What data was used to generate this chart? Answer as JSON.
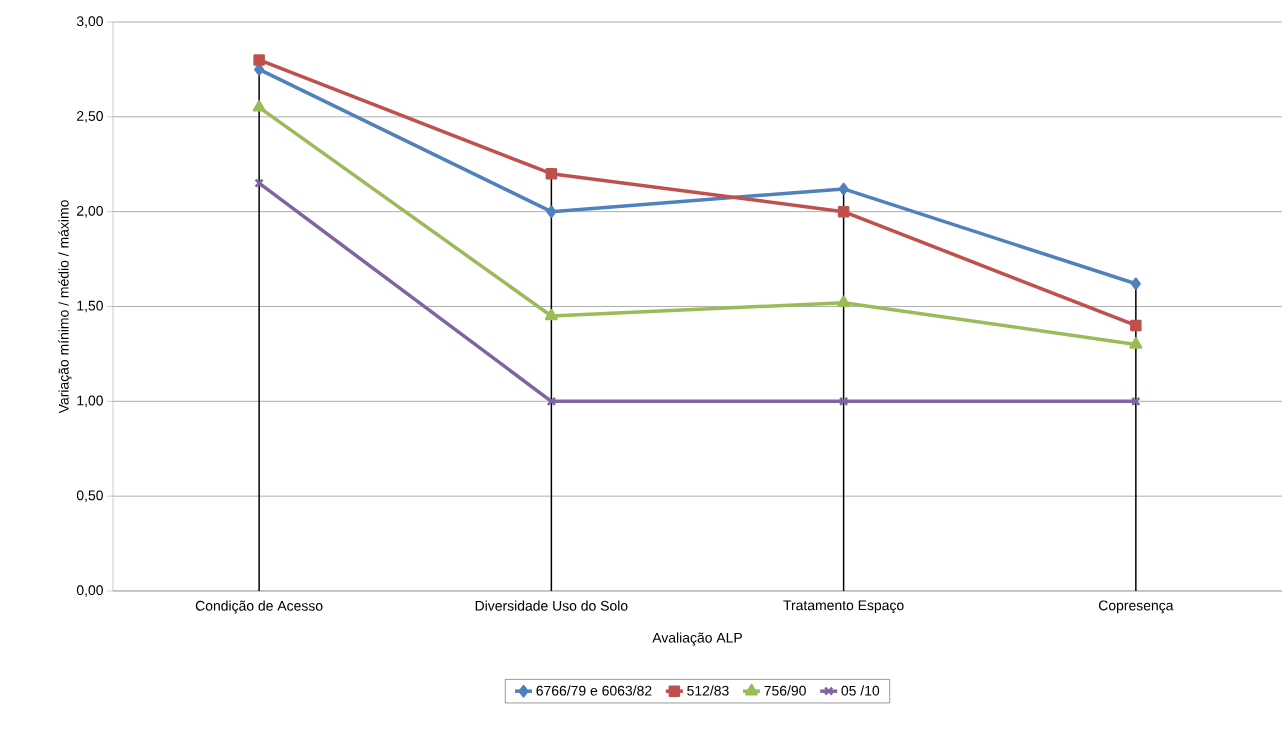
{
  "chart_data": {
    "type": "line",
    "xlabel": "Avaliação ALP",
    "ylabel": "Variação mínimo / médio / máximo",
    "categories": [
      "Condição de Acesso",
      "Diversidade Uso do Solo",
      "Tratamento Espaço",
      "Copresença"
    ],
    "series": [
      {
        "name": "6766/79 e 6063/82",
        "color": "#4f81bd",
        "marker": "diamond",
        "values": [
          2.75,
          2.0,
          2.12,
          1.62
        ]
      },
      {
        "name": "512/83",
        "color": "#c0504d",
        "marker": "square",
        "values": [
          2.8,
          2.2,
          2.0,
          1.4
        ]
      },
      {
        "name": "756/90",
        "color": "#9bbb59",
        "marker": "triangle",
        "values": [
          2.55,
          1.45,
          1.52,
          1.3
        ]
      },
      {
        "name": "05 /10",
        "color": "#8064a2",
        "marker": "cross",
        "values": [
          2.15,
          1.0,
          1.0,
          1.0
        ]
      }
    ],
    "ylim": [
      0,
      3
    ],
    "yticks": [
      {
        "value": 0,
        "label": "0,00"
      },
      {
        "value": 0.5,
        "label": "0,50"
      },
      {
        "value": 1,
        "label": "1,00"
      },
      {
        "value": 1.5,
        "label": "1,50"
      },
      {
        "value": 2,
        "label": "2,00"
      },
      {
        "value": 2.5,
        "label": "2,50"
      },
      {
        "value": 3,
        "label": "3,00"
      }
    ],
    "ref_lines": [
      {
        "axis": "x",
        "value": "Condição de Acesso",
        "color": "#000000"
      },
      {
        "axis": "x",
        "value": "Diversidade Uso do Solo",
        "color": "#000000"
      },
      {
        "axis": "x",
        "value": "Tratamento Espaço",
        "color": "#000000"
      },
      {
        "axis": "x",
        "value": "Copresença",
        "color": "#000000"
      }
    ],
    "grid": "y",
    "legend": "bottom",
    "line_style": "solid"
  }
}
